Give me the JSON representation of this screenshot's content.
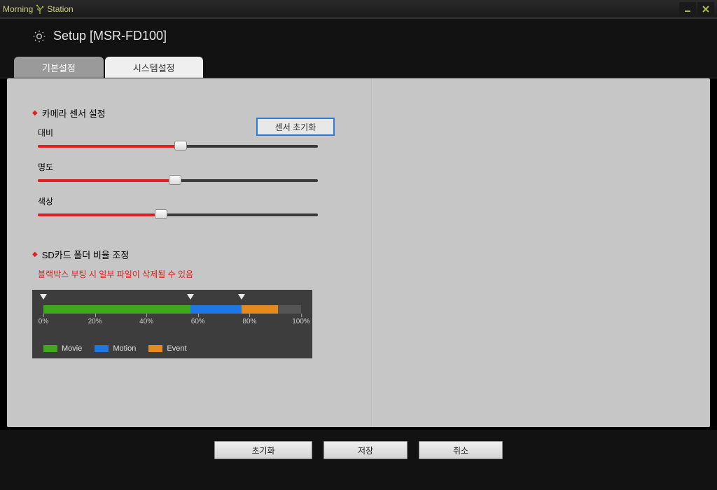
{
  "app": {
    "name_part1": "Morning",
    "name_part2": "Station"
  },
  "header": {
    "title": "Setup  [MSR-FD100]"
  },
  "tabs": {
    "basic": "기본설정",
    "system": "시스템설정"
  },
  "section1": {
    "title": "카메라 센서 설정",
    "reset_btn": "센서 초기화",
    "sliders": {
      "contrast": {
        "label": "대비",
        "value": 51
      },
      "brightness": {
        "label": "명도",
        "value": 49
      },
      "color": {
        "label": "색상",
        "value": 44
      }
    }
  },
  "section2": {
    "title": "SD카드 폴더 비율 조정",
    "warning": "블랙박스 부팅 시 일부 파일이 삭제될 수 있음",
    "ticks": [
      "0%",
      "20%",
      "40%",
      "60%",
      "80%",
      "100%"
    ],
    "markers": [
      0,
      57,
      77
    ],
    "segments": {
      "movie": {
        "start": 0,
        "end": 57,
        "color": "#3fa81d",
        "label": "Movie"
      },
      "motion": {
        "start": 57,
        "end": 77,
        "color": "#1f77e6",
        "label": "Motion"
      },
      "event": {
        "start": 77,
        "end": 91,
        "color": "#e58a1f",
        "label": "Event"
      }
    }
  },
  "footer": {
    "reset": "초기화",
    "save": "저장",
    "cancel": "취소"
  }
}
